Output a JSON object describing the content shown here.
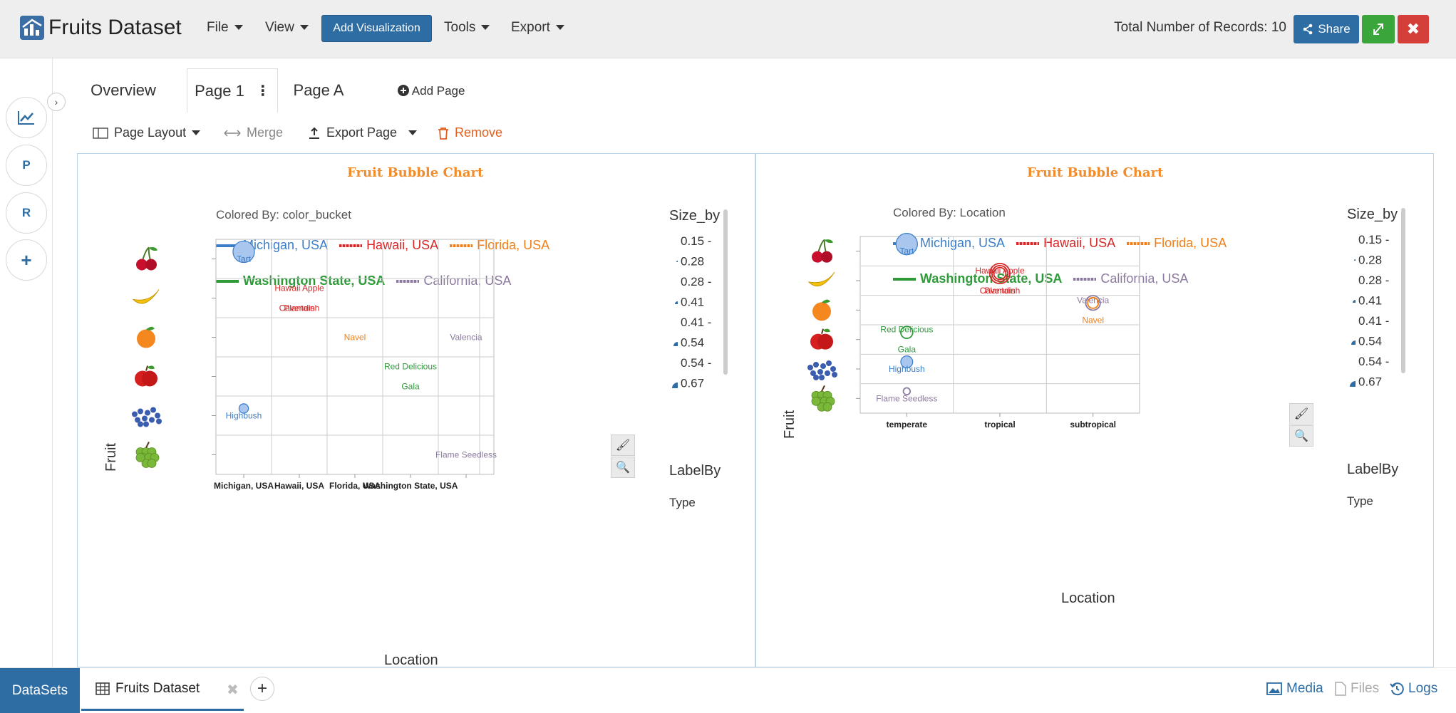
{
  "app": {
    "title": "Fruits Dataset"
  },
  "menu": {
    "file": "File",
    "view": "View",
    "add_visualization": "Add Visualization",
    "tools": "Tools",
    "export": "Export"
  },
  "header": {
    "records": "Total Number of Records: 10",
    "share": "Share",
    "close": "✖"
  },
  "rail": {
    "p": "P",
    "r": "R",
    "plus": "+"
  },
  "tabs": {
    "overview": "Overview",
    "page1": "Page 1",
    "pageA": "Page A",
    "add_page": "Add Page"
  },
  "page_toolbar": {
    "layout": "Page Layout",
    "merge": "Merge",
    "export_page": "Export Page",
    "remove": "Remove"
  },
  "colors": {
    "michigan": "#3a7dc8",
    "hawaii": "#d62728",
    "florida": "#f07f1a",
    "washington": "#2e9a3a",
    "california": "#8c7a9e"
  },
  "chart_data": [
    {
      "type": "scatter",
      "title": "Fruit Bubble Chart",
      "colored_by": "Colored By: color_bucket",
      "legend": [
        "Michigan, USA",
        "Hawaii, USA",
        "Florida, USA",
        "Washington State, USA",
        "California, USA"
      ],
      "xlabel": "Location",
      "ylabel": "Fruit",
      "x_categories": [
        "Michigan, USA",
        "Hawaii, USA",
        "Florida, USA",
        "Washington State, USA",
        "California, USA"
      ],
      "x_tick_labels": [
        "Michigan, USA",
        "Hawaii, USA",
        "Florida, USA",
        "Washington State, USA",
        ""
      ],
      "y_categories": [
        "cherry",
        "banana",
        "orange",
        "apple",
        "blueberry",
        "grape"
      ],
      "points": [
        {
          "label": "Tart",
          "x": "Michigan, USA",
          "y": "cherry",
          "size": 0.67,
          "color": "michigan"
        },
        {
          "label": "Hawaii Apple",
          "x": "Hawaii, USA",
          "y": "banana",
          "size": 0.0,
          "color": "hawaii",
          "dy": -1
        },
        {
          "label": "Cavendish",
          "x": "Hawaii, USA",
          "y": "banana",
          "size": 0.0,
          "color": "hawaii",
          "dy": 1
        },
        {
          "label": "Plantain",
          "x": "Hawaii, USA",
          "y": "banana",
          "size": 0.0,
          "color": "hawaii",
          "dy": 1
        },
        {
          "label": "Navel",
          "x": "Florida, USA",
          "y": "orange",
          "size": 0.0,
          "color": "florida"
        },
        {
          "label": "Valencia",
          "x": "California, USA",
          "y": "orange",
          "size": 0.0,
          "color": "california"
        },
        {
          "label": "Red Delicious",
          "x": "Washington State, USA",
          "y": "apple",
          "size": 0.0,
          "color": "washington",
          "dy": -1
        },
        {
          "label": "Gala",
          "x": "Washington State, USA",
          "y": "apple",
          "size": 0.0,
          "color": "washington",
          "dy": 1
        },
        {
          "label": "Highbush",
          "x": "Michigan, USA",
          "y": "blueberry",
          "size": 0.2,
          "color": "michigan"
        },
        {
          "label": "Flame Seedless",
          "x": "California, USA",
          "y": "grape",
          "size": 0.0,
          "color": "california"
        }
      ],
      "size_by": {
        "title": "Size_by",
        "ranges": [
          "0.15 -",
          "0.28",
          "0.28 -",
          "0.41",
          "0.41 -",
          "0.54",
          "0.54 -",
          "0.67"
        ]
      },
      "label_by": {
        "title": "LabelBy",
        "value": "Type"
      }
    },
    {
      "type": "scatter",
      "title": "Fruit Bubble Chart",
      "colored_by": "Colored By: Location",
      "legend": [
        "Michigan, USA",
        "Hawaii, USA",
        "Florida, USA",
        "Washington State, USA",
        "California, USA"
      ],
      "xlabel": "Location",
      "ylabel": "Fruit",
      "x_categories": [
        "temperate",
        "tropical",
        "subtropical"
      ],
      "x_tick_labels": [
        "temperate",
        "tropical",
        "subtropical"
      ],
      "y_categories": [
        "cherry",
        "banana",
        "orange",
        "apple",
        "blueberry",
        "grape"
      ],
      "points": [
        {
          "label": "Tart",
          "x": "temperate",
          "y": "cherry",
          "size": 0.67,
          "color": "michigan"
        },
        {
          "label": "Hawaii Apple",
          "x": "tropical",
          "y": "banana",
          "size": 0.62,
          "color": "hawaii",
          "dy": -1
        },
        {
          "label": "Cavendish",
          "x": "tropical",
          "y": "banana",
          "size": 0.45,
          "color": "hawaii",
          "dy": 1
        },
        {
          "label": "Plantain",
          "x": "tropical",
          "y": "banana",
          "size": 0.3,
          "color": "hawaii",
          "dy": 1
        },
        {
          "label": "Valencia",
          "x": "subtropical",
          "y": "orange",
          "size": 0.4,
          "color": "california",
          "dy": -1
        },
        {
          "label": "Navel",
          "x": "subtropical",
          "y": "orange",
          "size": 0.25,
          "color": "florida",
          "dy": 1
        },
        {
          "label": "Red Delicious",
          "x": "temperate",
          "y": "apple",
          "size": 0.0,
          "color": "washington",
          "dy": -1
        },
        {
          "label": "Gala",
          "x": "temperate",
          "y": "apple",
          "size": 0.3,
          "color": "washington",
          "dy": 1
        },
        {
          "label": "Highbush",
          "x": "temperate",
          "y": "blueberry",
          "size": 0.3,
          "color": "michigan"
        },
        {
          "label": "Flame Seedless",
          "x": "temperate",
          "y": "grape",
          "size": 0.1,
          "color": "california"
        }
      ],
      "size_by": {
        "title": "Size_by",
        "ranges": [
          "0.15 -",
          "0.28",
          "0.28 -",
          "0.41",
          "0.41 -",
          "0.54",
          "0.54 -",
          "0.67"
        ]
      },
      "label_by": {
        "title": "LabelBy",
        "value": "Type"
      }
    }
  ],
  "bottom": {
    "datasets": "DataSets",
    "dataset_tab": "Fruits Dataset",
    "media": "Media",
    "files": "Files",
    "logs": "Logs"
  }
}
